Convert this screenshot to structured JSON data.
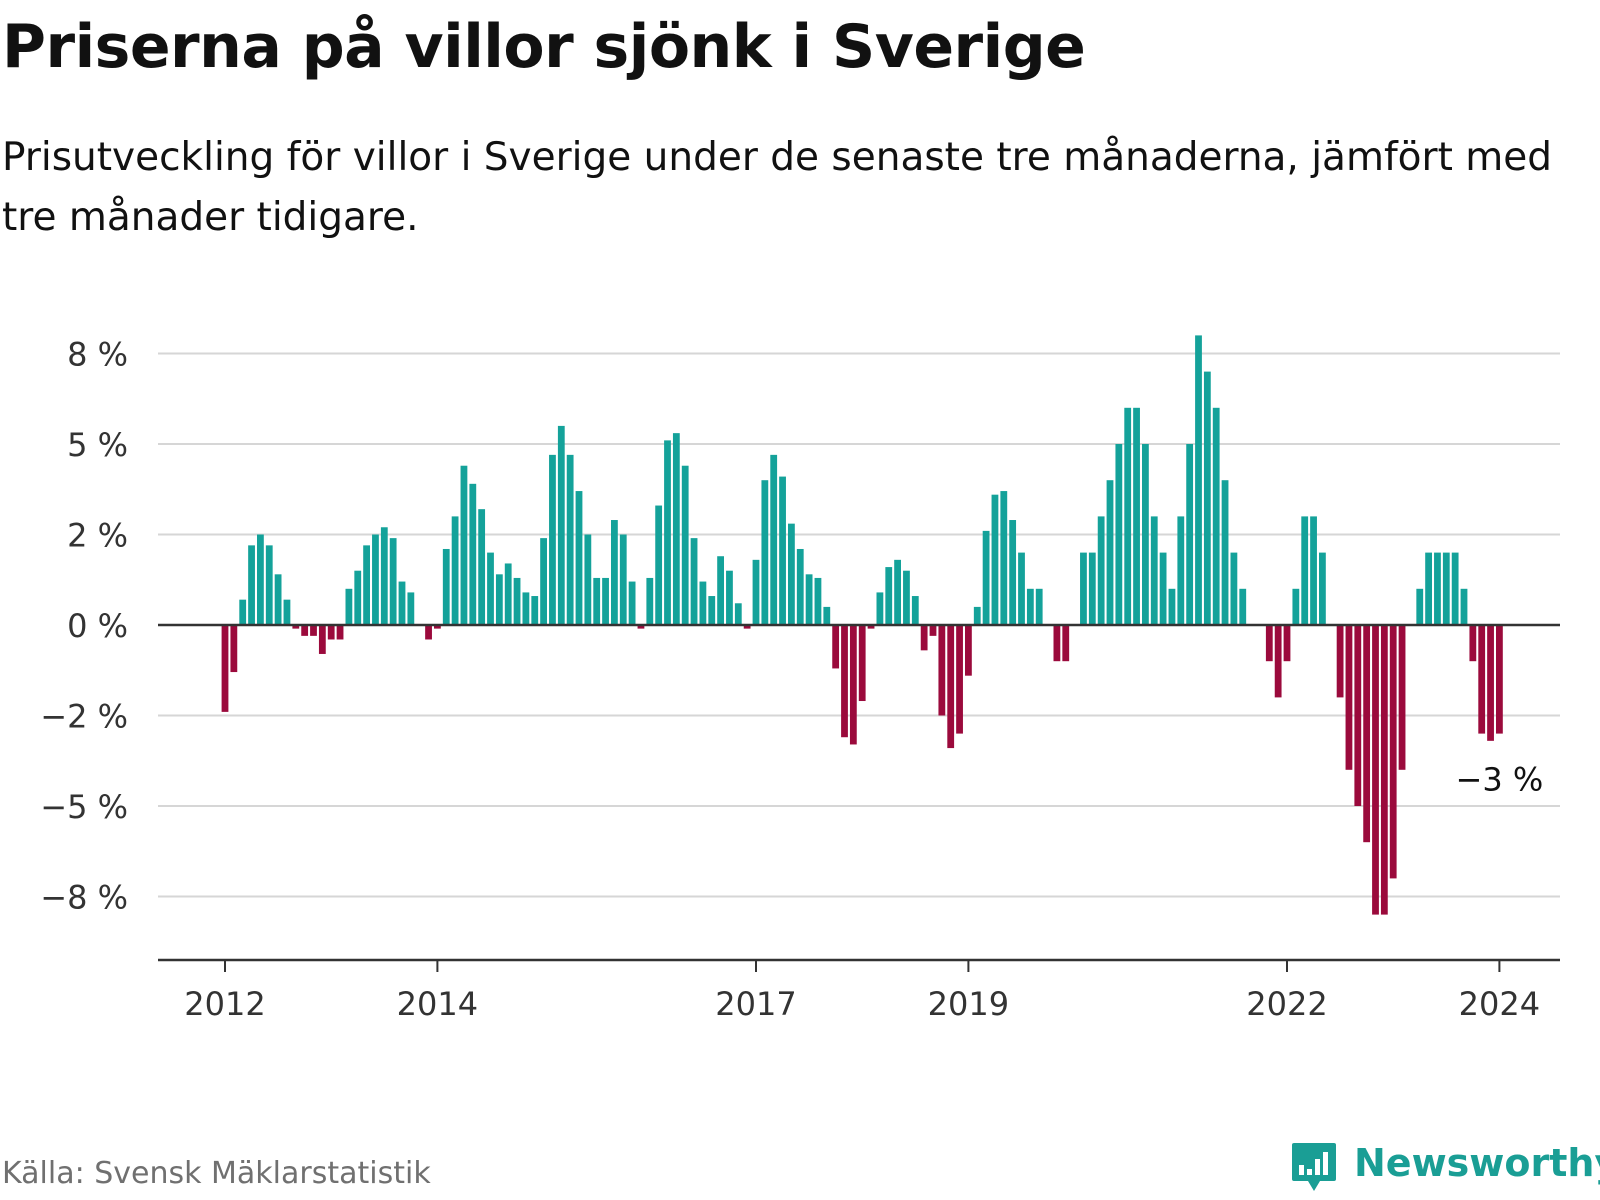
{
  "header": {
    "title": "Priserna på villor sjönk i Sverige",
    "subtitle": "Prisutveckling för villor i Sverige under de senaste tre månaderna, jämfört med tre månader tidigare."
  },
  "footer": {
    "source": "Källa: Svensk Mäklarstatistik",
    "brand": "Newsworthy",
    "brand_icon": "bar-chart-speech-bubble-icon"
  },
  "colors": {
    "positive": "#14a29a",
    "negative": "#9b0a3c",
    "grid": "#d6d6d6",
    "axis": "#333333",
    "brand": "#1a9e95"
  },
  "chart_data": {
    "type": "bar",
    "title": "Priserna på villor sjönk i Sverige",
    "xlabel": "",
    "ylabel": "",
    "ylim": [
      -9.5,
      8.5
    ],
    "grid": true,
    "y_ticks": [
      {
        "value": 7.5,
        "label": "8 %"
      },
      {
        "value": 5,
        "label": "5 %"
      },
      {
        "value": 2.5,
        "label": "2 %"
      },
      {
        "value": 0,
        "label": "0 %"
      },
      {
        "value": -2.5,
        "label": "−2 %"
      },
      {
        "value": -5,
        "label": "−5 %"
      },
      {
        "value": -7.5,
        "label": "−8 %"
      }
    ],
    "x_ticks": [
      {
        "index": 0,
        "label": "2012"
      },
      {
        "index": 24,
        "label": "2014"
      },
      {
        "index": 60,
        "label": "2017"
      },
      {
        "index": 84,
        "label": "2019"
      },
      {
        "index": 120,
        "label": "2022"
      },
      {
        "index": 144,
        "label": "2024"
      }
    ],
    "annotation": {
      "index": 144,
      "label": "−3 %"
    },
    "series": [
      {
        "name": "Prisutveckling",
        "start": "2012-01",
        "frequency": "monthly",
        "values": [
          -2.4,
          -1.3,
          0.7,
          2.2,
          2.5,
          2.2,
          1.4,
          0.7,
          -0.1,
          -0.3,
          -0.3,
          -0.8,
          -0.4,
          -0.4,
          1.0,
          1.5,
          2.2,
          2.5,
          2.7,
          2.4,
          1.2,
          0.9,
          0,
          -0.4,
          -0.1,
          2.1,
          3.0,
          4.4,
          3.9,
          3.2,
          2.0,
          1.4,
          1.7,
          1.3,
          0.9,
          0.8,
          2.4,
          4.7,
          5.5,
          4.7,
          3.7,
          2.5,
          1.3,
          1.3,
          2.9,
          2.5,
          1.2,
          -0.1,
          1.3,
          3.3,
          5.1,
          5.3,
          4.4,
          2.4,
          1.2,
          0.8,
          1.9,
          1.5,
          0.6,
          -0.1,
          1.8,
          4.0,
          4.7,
          4.1,
          2.8,
          2.1,
          1.4,
          1.3,
          0.5,
          -1.2,
          -3.1,
          -3.3,
          -2.1,
          -0.1,
          0.9,
          1.6,
          1.8,
          1.5,
          0.8,
          -0.7,
          -0.3,
          -2.5,
          -3.4,
          -3.0,
          -1.4,
          0.5,
          2.6,
          3.6,
          3.7,
          2.9,
          2.0,
          1.0,
          1.0,
          0,
          -1.0,
          -1.0,
          0,
          2.0,
          2.0,
          3.0,
          4.0,
          5.0,
          6.0,
          6.0,
          5.0,
          3.0,
          2.0,
          1.0,
          3.0,
          5.0,
          8.0,
          7.0,
          6.0,
          4.0,
          2.0,
          1.0,
          0,
          0,
          -1.0,
          -2.0,
          -1.0,
          1.0,
          3.0,
          3.0,
          2.0,
          0,
          -2.0,
          -4.0,
          -5.0,
          -6.0,
          -8.0,
          -8.0,
          -7.0,
          -4.0,
          0,
          1.0,
          2.0,
          2.0,
          2.0,
          2.0,
          1.0,
          -1.0,
          -3.0,
          -3.2,
          -3.0
        ]
      }
    ]
  }
}
